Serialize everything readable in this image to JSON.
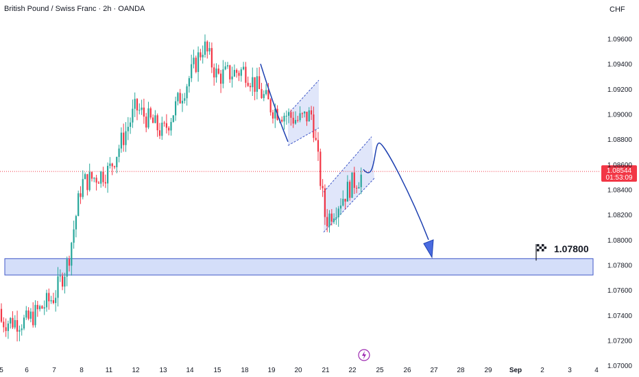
{
  "header": {
    "symbol_title": "British Pound / Swiss Franc · 2h · OANDA",
    "currency": "CHF"
  },
  "colors": {
    "up": "#26a69a",
    "down": "#f23645",
    "channel_fill": "#c7d2f5",
    "channel_border": "#3f57c7",
    "projection": "#1c3fb0",
    "target_zone": "#c9d6f8",
    "price_line": "#f23645"
  },
  "chart_data": {
    "type": "candlestick",
    "title": "British Pound / Swiss Franc · 2h · OANDA",
    "ylabel": "CHF",
    "ylim": [
      1.0699,
      1.0969
    ],
    "y_ticks": [
      "1.09600",
      "1.09400",
      "1.09200",
      "1.09000",
      "1.08800",
      "1.08600",
      "1.08400",
      "1.08200",
      "1.08000",
      "1.07800",
      "1.07600",
      "1.07400",
      "1.07200",
      "1.07000"
    ],
    "y_tick_values": [
      1.096,
      1.094,
      1.092,
      1.09,
      1.088,
      1.086,
      1.084,
      1.082,
      1.08,
      1.078,
      1.076,
      1.074,
      1.072,
      1.07
    ],
    "x_ticks": [
      "5",
      "6",
      "7",
      "8",
      "11",
      "12",
      "13",
      "14",
      "15",
      "18",
      "19",
      "20",
      "21",
      "22",
      "25",
      "26",
      "27",
      "28",
      "29",
      "Sep",
      "2",
      "3",
      "4"
    ],
    "current_price": "1.08544",
    "current_price_value": 1.08544,
    "countdown": "01:53:09",
    "target_label": "1.07800",
    "target_zone": [
      1.0772,
      1.0785
    ],
    "grid": false,
    "legend": "none",
    "key_points": [
      {
        "x": "6",
        "close": 1.0735
      },
      {
        "x": "7",
        "close": 1.0755
      },
      {
        "x": "7.5",
        "close": 1.0782
      },
      {
        "x": "8",
        "close": 1.0845
      },
      {
        "x": "11",
        "close": 1.0855
      },
      {
        "x": "12",
        "close": 1.0905
      },
      {
        "x": "13",
        "close": 1.0885
      },
      {
        "x": "14",
        "close": 1.093
      },
      {
        "x": "14.5",
        "close": 1.0955
      },
      {
        "x": "15",
        "close": 1.093
      },
      {
        "x": "18",
        "close": 1.0935
      },
      {
        "x": "19",
        "close": 1.0905
      },
      {
        "x": "20",
        "close": 1.0895
      },
      {
        "x": "20.5",
        "close": 1.09
      },
      {
        "x": "21",
        "close": 1.0815
      },
      {
        "x": "22",
        "close": 1.0845
      },
      {
        "x": "22.5",
        "close": 1.0854
      }
    ]
  }
}
